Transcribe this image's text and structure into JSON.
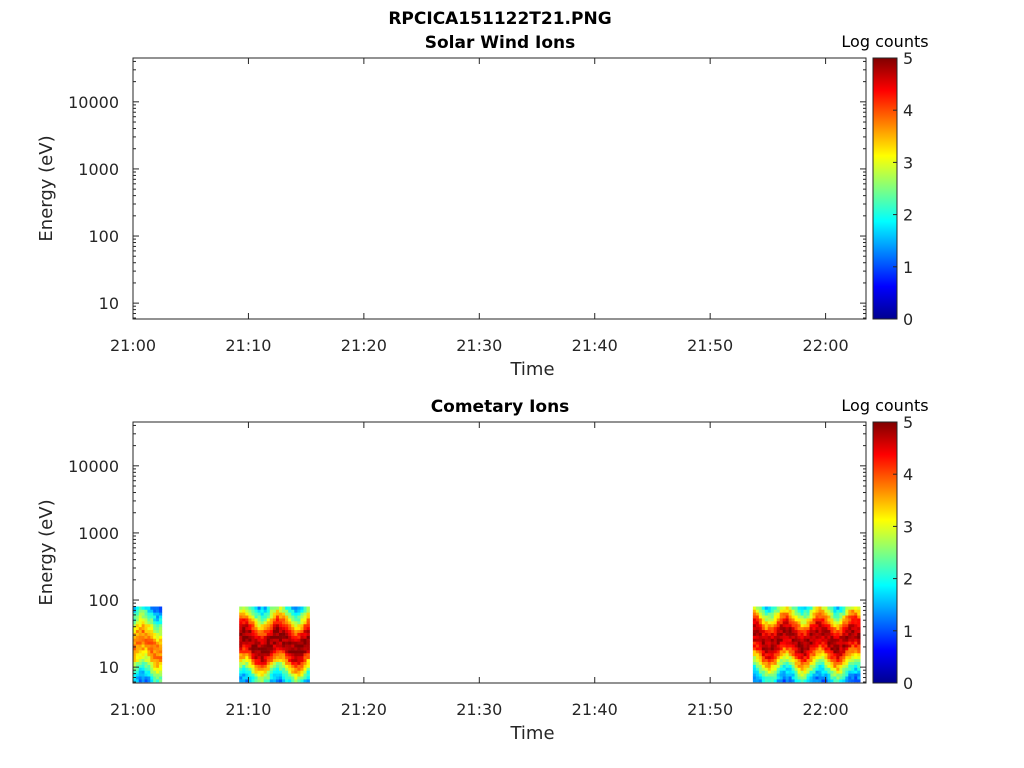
{
  "figure_title": "RPCICA151122T21.PNG",
  "chart_data": [
    {
      "type": "heatmap",
      "title": "Solar Wind Ions",
      "xlabel": "Time",
      "ylabel": "Energy (eV)",
      "x_ticks": [
        "21:00",
        "21:10",
        "21:20",
        "21:30",
        "21:40",
        "21:50",
        "22:00"
      ],
      "y_ticks": [
        "10",
        "100",
        "1000",
        "10000"
      ],
      "y_scale": "log",
      "colorbar": {
        "label": "Log counts",
        "ticks": [
          "0",
          "1",
          "2",
          "3",
          "4",
          "5"
        ],
        "range": [
          0,
          5
        ]
      },
      "data_blocks": []
    },
    {
      "type": "heatmap",
      "title": "Cometary Ions",
      "xlabel": "Time",
      "ylabel": "Energy (eV)",
      "x_ticks": [
        "21:00",
        "21:10",
        "21:20",
        "21:30",
        "21:40",
        "21:50",
        "22:00"
      ],
      "y_ticks": [
        "10",
        "100",
        "1000",
        "10000"
      ],
      "y_scale": "log",
      "colorbar": {
        "label": "Log counts",
        "ticks": [
          "0",
          "1",
          "2",
          "3",
          "4",
          "5"
        ],
        "range": [
          0,
          5
        ]
      },
      "data_blocks": [
        {
          "start": "21:00",
          "end": "21:02.5",
          "energy_eV": [
            6,
            80
          ],
          "peak_energy_eV": 20,
          "peak_log_counts": 3.2
        },
        {
          "start": "21:09.2",
          "end": "21:15.3",
          "energy_eV": [
            6,
            80
          ],
          "peak_energy_eV": 22,
          "peak_log_counts": 4.3
        },
        {
          "start": "21:53.7",
          "end": "22:03",
          "energy_eV": [
            6,
            80
          ],
          "peak_energy_eV": 25,
          "peak_log_counts": 4.2
        }
      ]
    }
  ]
}
